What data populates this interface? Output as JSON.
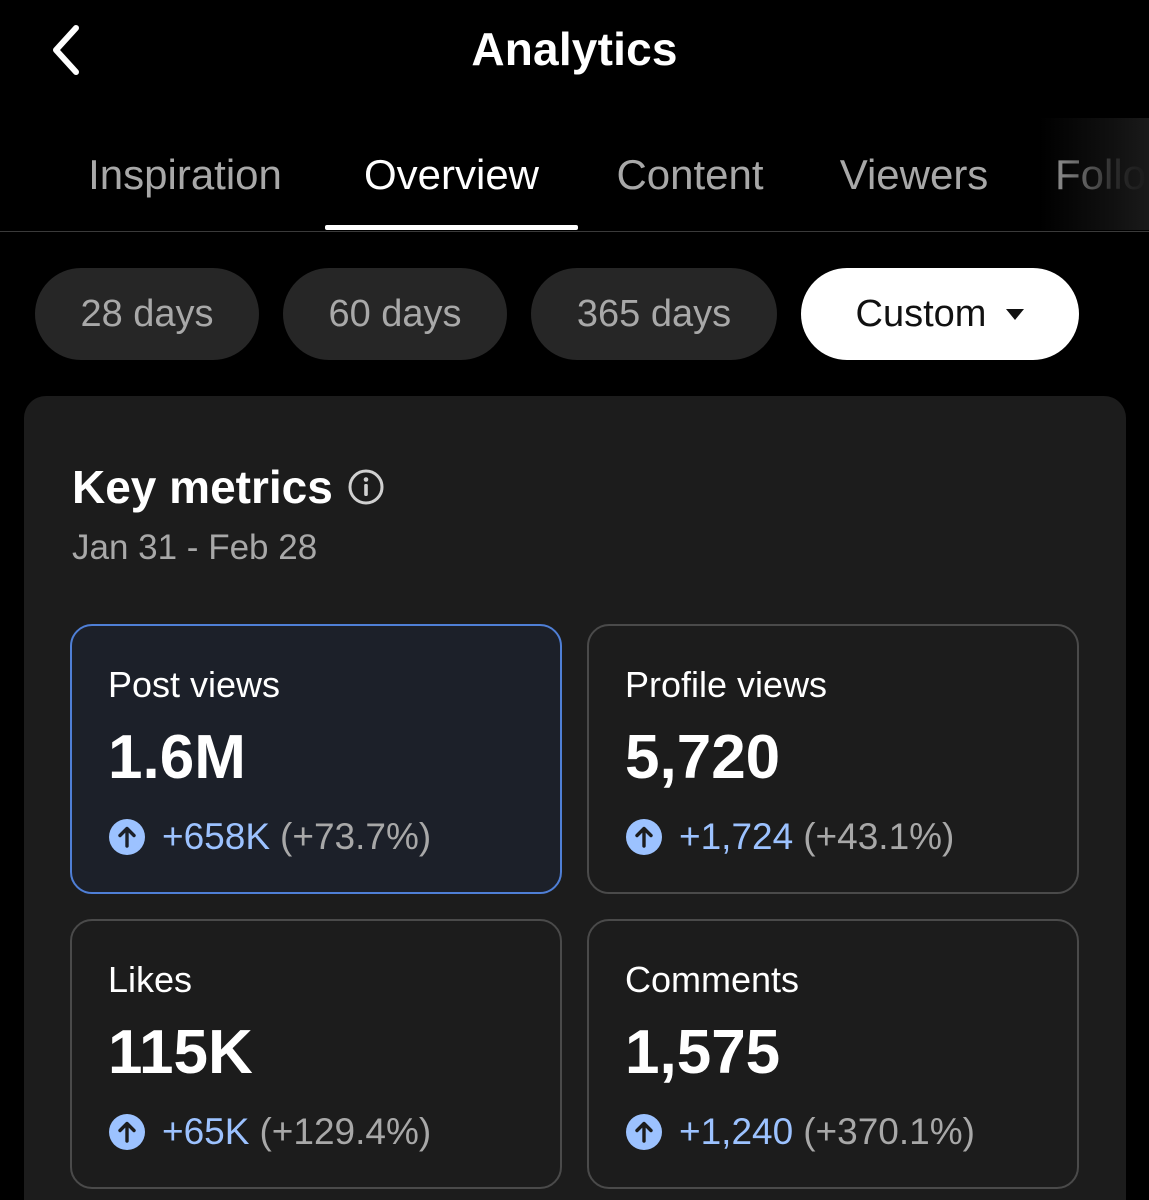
{
  "header": {
    "title": "Analytics"
  },
  "tabs": [
    {
      "label": "Inspiration",
      "active": false
    },
    {
      "label": "Overview",
      "active": true
    },
    {
      "label": "Content",
      "active": false
    },
    {
      "label": "Viewers",
      "active": false
    },
    {
      "label": "Follo",
      "active": false
    }
  ],
  "ranges": [
    {
      "label": "28 days",
      "selected": false
    },
    {
      "label": "60 days",
      "selected": false
    },
    {
      "label": "365 days",
      "selected": false
    },
    {
      "label": "Custom",
      "selected": true
    }
  ],
  "key_metrics": {
    "title": "Key metrics",
    "date_range": "Jan 31 - Feb 28",
    "items": [
      {
        "label": "Post views",
        "value": "1.6M",
        "delta": "+658K",
        "delta_pct": "(+73.7%)",
        "highlighted": true
      },
      {
        "label": "Profile views",
        "value": "5,720",
        "delta": "+1,724",
        "delta_pct": "(+43.1%)",
        "highlighted": false
      },
      {
        "label": "Likes",
        "value": "115K",
        "delta": "+65K",
        "delta_pct": "(+129.4%)",
        "highlighted": false
      },
      {
        "label": "Comments",
        "value": "1,575",
        "delta": "+1,240",
        "delta_pct": "(+370.1%)",
        "highlighted": false
      }
    ]
  },
  "colors": {
    "background": "#000000",
    "card": "#1c1c1c",
    "accent_blue": "#9cc2ff",
    "highlight_border": "#4f7fd6",
    "muted_text": "#a8a8a8"
  },
  "icons": {
    "back": "chevron-left-icon",
    "info": "info-icon",
    "delta": "arrow-up-circle-icon",
    "dropdown": "caret-down-icon"
  }
}
